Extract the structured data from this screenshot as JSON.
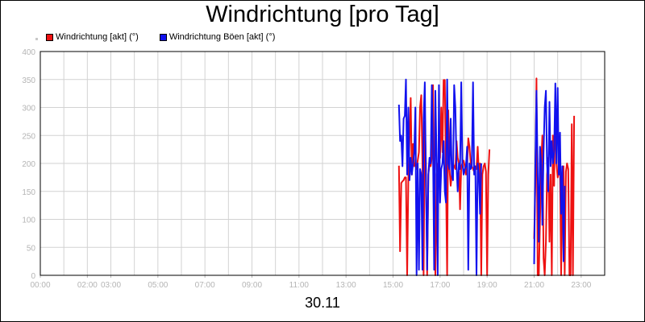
{
  "chart_data": {
    "type": "line",
    "title": "Windrichtung [pro Tag]",
    "xlabel": "30.11",
    "ylabel": "",
    "ylim": [
      0,
      400
    ],
    "yticks": [
      0,
      50,
      100,
      150,
      200,
      250,
      300,
      350,
      400
    ],
    "xlim": [
      "00:00",
      "24:00"
    ],
    "xtick_labels": [
      "00:00",
      "02:00",
      "03:00",
      "05:00",
      "07:00",
      "09:00",
      "11:00",
      "13:00",
      "15:00",
      "17:00",
      "19:00",
      "21:00",
      "23:00"
    ],
    "xtick_hours": [
      0,
      2,
      3,
      5,
      7,
      9,
      11,
      13,
      15,
      17,
      19,
      21,
      23
    ],
    "grid": true,
    "legend_position": "top-left",
    "series": [
      {
        "name": "Windrichtung [akt] (°)",
        "color": "#ee1111",
        "points": [
          [
            "15:15",
            196
          ],
          [
            "15:18",
            43
          ],
          [
            "15:21",
            165
          ],
          [
            "15:24",
            168
          ],
          [
            "15:27",
            170
          ],
          [
            "15:30",
            175
          ],
          [
            "15:33",
            175
          ],
          [
            "15:36",
            0
          ],
          [
            "15:39",
            175
          ],
          [
            "15:42",
            240
          ],
          [
            "15:45",
            317
          ],
          [
            "15:48",
            180
          ],
          [
            "15:51",
            235
          ],
          [
            "15:54",
            195
          ],
          [
            "15:57",
            200
          ],
          [
            "16:00",
            190
          ],
          [
            "16:03",
            205
          ],
          [
            "16:06",
            220
          ],
          [
            "16:09",
            300
          ],
          [
            "16:12",
            322
          ],
          [
            "16:15",
            200
          ],
          [
            "16:18",
            0
          ],
          [
            "16:21",
            275
          ],
          [
            "16:24",
            200
          ],
          [
            "16:27",
            0
          ],
          [
            "16:30",
            180
          ],
          [
            "16:33",
            200
          ],
          [
            "16:36",
            195
          ],
          [
            "16:39",
            210
          ],
          [
            "16:42",
            340
          ],
          [
            "16:45",
            100
          ],
          [
            "16:48",
            0
          ],
          [
            "16:51",
            180
          ],
          [
            "16:54",
            195
          ],
          [
            "16:57",
            205
          ],
          [
            "17:00",
            210
          ],
          [
            "17:03",
            300
          ],
          [
            "17:06",
            220
          ],
          [
            "17:09",
            349
          ],
          [
            "17:12",
            349
          ],
          [
            "17:15",
            180
          ],
          [
            "17:18",
            0
          ],
          [
            "17:21",
            295
          ],
          [
            "17:24",
            190
          ],
          [
            "17:27",
            160
          ],
          [
            "17:30",
            180
          ],
          [
            "17:33",
            200
          ],
          [
            "17:36",
            195
          ],
          [
            "17:39",
            190
          ],
          [
            "17:42",
            240
          ],
          [
            "17:45",
            210
          ],
          [
            "17:48",
            200
          ],
          [
            "17:51",
            118
          ],
          [
            "17:54",
            195
          ],
          [
            "17:57",
            200
          ],
          [
            "18:00",
            205
          ],
          [
            "18:03",
            195
          ],
          [
            "18:06",
            180
          ],
          [
            "18:09",
            195
          ],
          [
            "18:12",
            245
          ],
          [
            "18:15",
            230
          ],
          [
            "18:18",
            200
          ],
          [
            "18:21",
            195
          ],
          [
            "18:24",
            190
          ],
          [
            "18:27",
            185
          ],
          [
            "18:30",
            195
          ],
          [
            "18:33",
            190
          ],
          [
            "18:36",
            230
          ],
          [
            "18:39",
            180
          ],
          [
            "18:42",
            200
          ],
          [
            "18:45",
            0
          ],
          [
            "18:48",
            180
          ],
          [
            "18:51",
            195
          ],
          [
            "18:54",
            200
          ],
          [
            "18:57",
            185
          ],
          [
            "19:00",
            0
          ],
          [
            "19:03",
            180
          ],
          [
            "19:06",
            225
          ],
          [
            "21:00",
            65
          ],
          [
            "21:03",
            160
          ],
          [
            "21:06",
            352
          ],
          [
            "21:09",
            0
          ],
          [
            "21:12",
            0
          ],
          [
            "21:15",
            100
          ],
          [
            "21:18",
            200
          ],
          [
            "21:21",
            250
          ],
          [
            "21:24",
            30
          ],
          [
            "21:27",
            0
          ],
          [
            "21:30",
            60
          ],
          [
            "21:33",
            180
          ],
          [
            "21:36",
            210
          ],
          [
            "21:39",
            60
          ],
          [
            "21:42",
            180
          ],
          [
            "21:45",
            0
          ],
          [
            "21:48",
            250
          ],
          [
            "21:51",
            160
          ],
          [
            "21:54",
            320
          ],
          [
            "21:57",
            200
          ],
          [
            "22:00",
            175
          ],
          [
            "22:03",
            185
          ],
          [
            "22:06",
            190
          ],
          [
            "22:09",
            0
          ],
          [
            "22:12",
            175
          ],
          [
            "22:15",
            195
          ],
          [
            "22:18",
            0
          ],
          [
            "22:21",
            185
          ],
          [
            "22:24",
            200
          ],
          [
            "22:27",
            190
          ],
          [
            "22:30",
            0
          ],
          [
            "22:33",
            0
          ],
          [
            "22:36",
            270
          ],
          [
            "22:39",
            0
          ],
          [
            "22:42",
            285
          ]
        ]
      },
      {
        "name": "Windrichtung Böen [akt] (°)",
        "color": "#1111ee",
        "points": [
          [
            "15:15",
            305
          ],
          [
            "15:18",
            240
          ],
          [
            "15:21",
            250
          ],
          [
            "15:24",
            195
          ],
          [
            "15:27",
            280
          ],
          [
            "15:30",
            285
          ],
          [
            "15:33",
            350
          ],
          [
            "15:36",
            180
          ],
          [
            "15:39",
            300
          ],
          [
            "15:42",
            170
          ],
          [
            "15:45",
            210
          ],
          [
            "15:48",
            180
          ],
          [
            "15:51",
            200
          ],
          [
            "15:54",
            220
          ],
          [
            "15:57",
            300
          ],
          [
            "16:00",
            0
          ],
          [
            "16:03",
            200
          ],
          [
            "16:06",
            10
          ],
          [
            "16:09",
            190
          ],
          [
            "16:12",
            180
          ],
          [
            "16:15",
            10
          ],
          [
            "16:18",
            280
          ],
          [
            "16:21",
            345
          ],
          [
            "16:24",
            170
          ],
          [
            "16:27",
            10
          ],
          [
            "16:30",
            180
          ],
          [
            "16:33",
            210
          ],
          [
            "16:36",
            200
          ],
          [
            "16:39",
            340
          ],
          [
            "16:42",
            220
          ],
          [
            "16:45",
            10
          ],
          [
            "16:48",
            330
          ],
          [
            "16:51",
            210
          ],
          [
            "16:54",
            0
          ],
          [
            "16:57",
            340
          ],
          [
            "17:00",
            130
          ],
          [
            "17:03",
            190
          ],
          [
            "17:06",
            200
          ],
          [
            "17:09",
            240
          ],
          [
            "17:12",
            150
          ],
          [
            "17:15",
            130
          ],
          [
            "17:18",
            350
          ],
          [
            "17:21",
            200
          ],
          [
            "17:24",
            190
          ],
          [
            "17:27",
            280
          ],
          [
            "17:30",
            180
          ],
          [
            "17:33",
            170
          ],
          [
            "17:36",
            340
          ],
          [
            "17:39",
            300
          ],
          [
            "17:42",
            195
          ],
          [
            "17:45",
            150
          ],
          [
            "17:48",
            200
          ],
          [
            "17:51",
            190
          ],
          [
            "17:54",
            345
          ],
          [
            "17:57",
            200
          ],
          [
            "18:00",
            180
          ],
          [
            "18:03",
            190
          ],
          [
            "18:06",
            195
          ],
          [
            "18:09",
            230
          ],
          [
            "18:12",
            10
          ],
          [
            "18:15",
            200
          ],
          [
            "18:18",
            190
          ],
          [
            "18:21",
            195
          ],
          [
            "18:24",
            345
          ],
          [
            "18:27",
            180
          ],
          [
            "18:30",
            195
          ],
          [
            "18:33",
            0
          ],
          [
            "18:36",
            200
          ],
          [
            "18:39",
            180
          ],
          [
            "18:42",
            110
          ],
          [
            "18:45",
            200
          ],
          [
            "21:00",
            20
          ],
          [
            "21:03",
            200
          ],
          [
            "21:06",
            330
          ],
          [
            "21:09",
            180
          ],
          [
            "21:12",
            60
          ],
          [
            "21:15",
            230
          ],
          [
            "21:18",
            200
          ],
          [
            "21:21",
            90
          ],
          [
            "21:24",
            220
          ],
          [
            "21:27",
            300
          ],
          [
            "21:30",
            330
          ],
          [
            "21:33",
            200
          ],
          [
            "21:36",
            150
          ],
          [
            "21:39",
            310
          ],
          [
            "21:42",
            195
          ],
          [
            "21:45",
            240
          ],
          [
            "21:48",
            200
          ],
          [
            "21:51",
            220
          ],
          [
            "21:54",
            343
          ],
          [
            "21:57",
            200
          ],
          [
            "22:00",
            335
          ],
          [
            "22:03",
            180
          ],
          [
            "22:06",
            255
          ],
          [
            "22:09",
            110
          ],
          [
            "22:12",
            195
          ],
          [
            "22:15",
            25
          ],
          [
            "22:18",
            160
          ]
        ]
      }
    ]
  }
}
